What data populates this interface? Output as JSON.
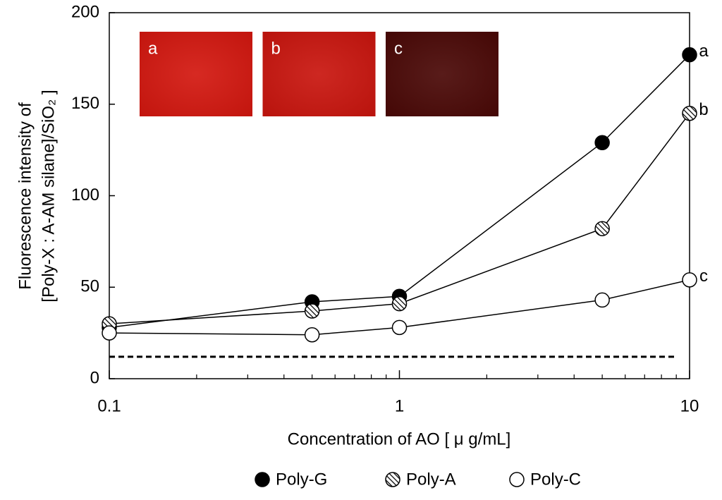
{
  "chart_data": {
    "type": "line",
    "ylabel": [
      "Fluorescence intensity of",
      "[Poly-X : A-AM silane]/SiO₂ ]"
    ],
    "xlabel": "Concentration of AO [ μ g/mL]",
    "xscale": "log",
    "x": [
      0.1,
      0.5,
      1,
      5,
      10
    ],
    "xlim": [
      0.1,
      10
    ],
    "xticks": [
      0.1,
      1,
      10
    ],
    "ylim": [
      0,
      200
    ],
    "yticks": [
      0,
      50,
      100,
      150,
      200
    ],
    "series": [
      {
        "name": "Poly-G",
        "color": "#000000",
        "marker": "filled",
        "end_label": "a",
        "values": [
          28,
          42,
          45,
          129,
          177
        ]
      },
      {
        "name": "Poly-A",
        "color": "#000000",
        "marker": "hatched",
        "end_label": "b",
        "values": [
          30,
          37,
          41,
          82,
          145
        ]
      },
      {
        "name": "Poly-C",
        "color": "#000000",
        "marker": "open",
        "end_label": "c",
        "values": [
          25,
          24,
          28,
          43,
          54
        ]
      }
    ],
    "hline": {
      "value": 12,
      "style": "dashed"
    },
    "insets": [
      {
        "label": "a",
        "color": "#d3170f"
      },
      {
        "label": "b",
        "color": "#c9150e"
      },
      {
        "label": "c",
        "color": "#4a0806"
      }
    ],
    "legend": "bottom"
  }
}
